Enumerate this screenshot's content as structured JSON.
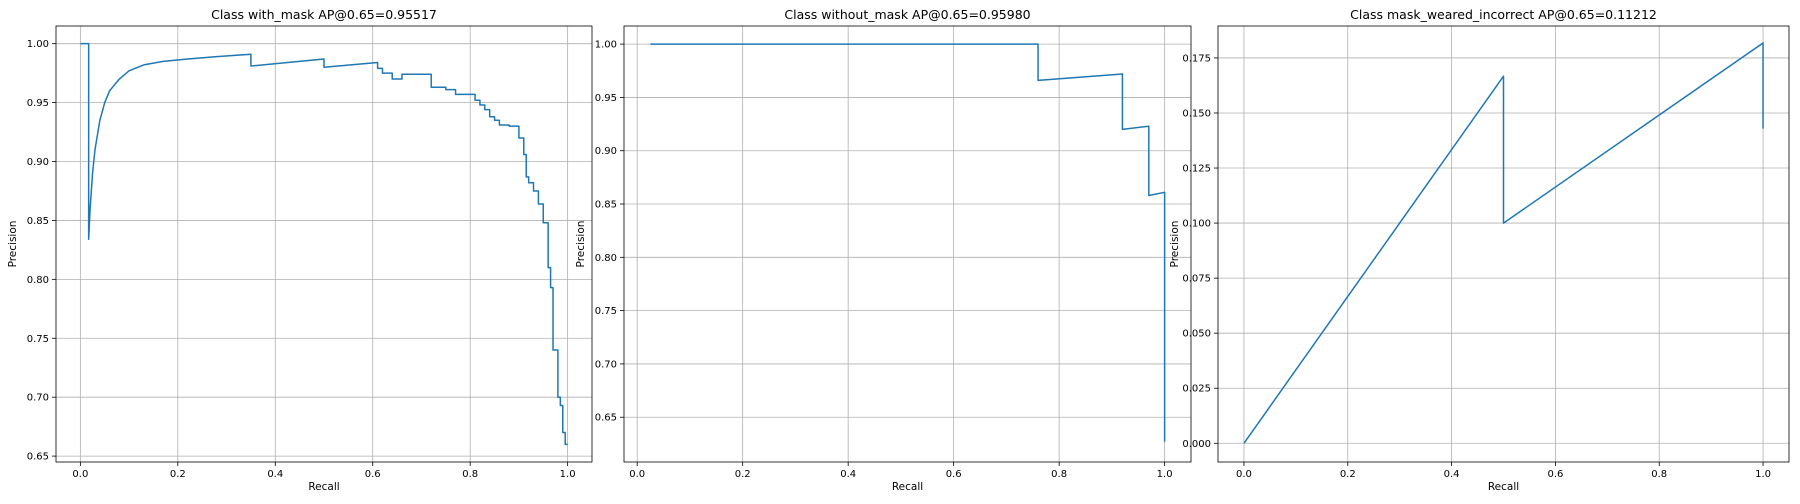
{
  "figure": {
    "line_color": "#1f77b4",
    "grid": true
  },
  "chart_data": [
    {
      "type": "line",
      "title": "Class with_mask AP@0.65=0.95517",
      "xlabel": "Recall",
      "ylabel": "Precision",
      "xlim": [
        -0.05,
        1.05
      ],
      "ylim": [
        0.645,
        1.015
      ],
      "xticks": [
        0.0,
        0.2,
        0.4,
        0.6,
        0.8,
        1.0
      ],
      "xtick_labels": [
        "0.0",
        "0.2",
        "0.4",
        "0.6",
        "0.8",
        "1.0"
      ],
      "yticks": [
        0.65,
        0.7,
        0.75,
        0.8,
        0.85,
        0.9,
        0.95,
        1.0
      ],
      "ytick_labels": [
        "0.65",
        "0.70",
        "0.75",
        "0.80",
        "0.85",
        "0.90",
        "0.95",
        "1.00"
      ],
      "series": [
        {
          "x": [
            0.0,
            0.017,
            0.017,
            0.02,
            0.025,
            0.03,
            0.04,
            0.05,
            0.06,
            0.08,
            0.1,
            0.13,
            0.17,
            0.22,
            0.28,
            0.35,
            0.35,
            0.5,
            0.5,
            0.61,
            0.61,
            0.62,
            0.62,
            0.64,
            0.64,
            0.66,
            0.66,
            0.72,
            0.72,
            0.75,
            0.75,
            0.77,
            0.77,
            0.81,
            0.81,
            0.82,
            0.82,
            0.83,
            0.83,
            0.84,
            0.84,
            0.85,
            0.85,
            0.86,
            0.86,
            0.88,
            0.88,
            0.9,
            0.9,
            0.91,
            0.91,
            0.915,
            0.915,
            0.92,
            0.92,
            0.93,
            0.93,
            0.94,
            0.94,
            0.95,
            0.95,
            0.96,
            0.96,
            0.965,
            0.965,
            0.97,
            0.97,
            0.98,
            0.98,
            0.985,
            0.985,
            0.99,
            0.99,
            0.995,
            0.995,
            1.0
          ],
          "y": [
            1.0,
            1.0,
            0.834,
            0.86,
            0.89,
            0.91,
            0.935,
            0.95,
            0.96,
            0.97,
            0.977,
            0.982,
            0.985,
            0.987,
            0.989,
            0.991,
            0.981,
            0.987,
            0.98,
            0.984,
            0.979,
            0.979,
            0.975,
            0.975,
            0.97,
            0.97,
            0.974,
            0.974,
            0.963,
            0.963,
            0.961,
            0.961,
            0.957,
            0.957,
            0.952,
            0.952,
            0.948,
            0.948,
            0.944,
            0.944,
            0.938,
            0.938,
            0.935,
            0.935,
            0.931,
            0.931,
            0.93,
            0.93,
            0.92,
            0.92,
            0.906,
            0.906,
            0.887,
            0.887,
            0.882,
            0.882,
            0.875,
            0.875,
            0.864,
            0.864,
            0.848,
            0.848,
            0.81,
            0.81,
            0.793,
            0.793,
            0.74,
            0.74,
            0.7,
            0.7,
            0.693,
            0.693,
            0.67,
            0.67,
            0.66,
            0.66
          ]
        }
      ]
    },
    {
      "type": "line",
      "title": "Class without_mask AP@0.65=0.95980",
      "xlabel": "Recall",
      "ylabel": "Precision",
      "xlim": [
        -0.025,
        1.05
      ],
      "ylim": [
        0.608,
        1.017
      ],
      "xticks": [
        0.0,
        0.2,
        0.4,
        0.6,
        0.8,
        1.0
      ],
      "xtick_labels": [
        "0.0",
        "0.2",
        "0.4",
        "0.6",
        "0.8",
        "1.0"
      ],
      "yticks": [
        0.65,
        0.7,
        0.75,
        0.8,
        0.85,
        0.9,
        0.95,
        1.0
      ],
      "ytick_labels": [
        "0.65",
        "0.70",
        "0.75",
        "0.80",
        "0.85",
        "0.90",
        "0.95",
        "1.00"
      ],
      "series": [
        {
          "x": [
            0.025,
            0.76,
            0.76,
            0.92,
            0.92,
            0.97,
            0.97,
            1.0,
            1.0
          ],
          "y": [
            1.0,
            1.0,
            0.966,
            0.972,
            0.92,
            0.923,
            0.858,
            0.861,
            0.627
          ]
        }
      ]
    },
    {
      "type": "line",
      "title": "Class mask_weared_incorrect AP@0.65=0.11212",
      "xlabel": "Recall",
      "ylabel": "Precision",
      "xlim": [
        -0.05,
        1.05
      ],
      "ylim": [
        -0.0085,
        0.1895
      ],
      "xticks": [
        0.0,
        0.2,
        0.4,
        0.6,
        0.8,
        1.0
      ],
      "xtick_labels": [
        "0.0",
        "0.2",
        "0.4",
        "0.6",
        "0.8",
        "1.0"
      ],
      "yticks": [
        0.0,
        0.025,
        0.05,
        0.075,
        0.1,
        0.125,
        0.15,
        0.175
      ],
      "ytick_labels": [
        "0.000",
        "0.025",
        "0.050",
        "0.075",
        "0.100",
        "0.125",
        "0.150",
        "0.175"
      ],
      "series": [
        {
          "x": [
            0.0,
            0.5,
            0.5,
            1.0,
            1.0
          ],
          "y": [
            0.0,
            0.1667,
            0.1,
            0.1818,
            0.1429
          ]
        }
      ]
    }
  ]
}
